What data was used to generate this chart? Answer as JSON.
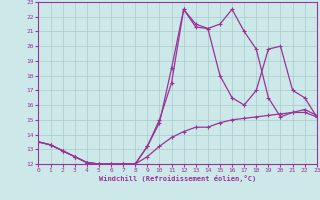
{
  "xlabel": "Windchill (Refroidissement éolien,°C)",
  "bg_color": "#cce8e8",
  "grid_color": "#aacccc",
  "line_color": "#993399",
  "xlim": [
    0,
    23
  ],
  "ylim": [
    12,
    23
  ],
  "x_ticks": [
    0,
    1,
    2,
    3,
    4,
    5,
    6,
    7,
    8,
    9,
    10,
    11,
    12,
    13,
    14,
    15,
    16,
    17,
    18,
    19,
    20,
    21,
    22,
    23
  ],
  "y_ticks": [
    12,
    13,
    14,
    15,
    16,
    17,
    18,
    19,
    20,
    21,
    22,
    23
  ],
  "line1_x": [
    0,
    1,
    2,
    3,
    4,
    5,
    6,
    7,
    8,
    9,
    10,
    11,
    12,
    13,
    14,
    15,
    16,
    17,
    18,
    19,
    20,
    21,
    22,
    23
  ],
  "line1_y": [
    13.5,
    13.3,
    12.9,
    12.5,
    12.1,
    12.0,
    12.0,
    12.0,
    12.0,
    12.5,
    13.2,
    13.8,
    14.2,
    14.5,
    14.5,
    14.8,
    15.0,
    15.1,
    15.2,
    15.3,
    15.4,
    15.5,
    15.7,
    15.3
  ],
  "line2_x": [
    0,
    1,
    2,
    3,
    4,
    5,
    6,
    7,
    8,
    9,
    10,
    11,
    12,
    13,
    14,
    15,
    16,
    17,
    18,
    19,
    20,
    21,
    22,
    23
  ],
  "line2_y": [
    13.5,
    13.3,
    12.9,
    12.5,
    12.1,
    12.0,
    12.0,
    12.0,
    12.0,
    13.2,
    15.0,
    17.5,
    22.5,
    21.3,
    21.2,
    18.0,
    16.5,
    16.0,
    17.0,
    19.8,
    20.0,
    17.0,
    16.5,
    15.2
  ],
  "line3_x": [
    0,
    1,
    2,
    3,
    4,
    5,
    6,
    7,
    8,
    9,
    10,
    11,
    12,
    13,
    14,
    15,
    16,
    17,
    18,
    19,
    20,
    21,
    22,
    23
  ],
  "line3_y": [
    13.5,
    13.3,
    12.9,
    12.5,
    12.1,
    12.0,
    12.0,
    12.0,
    12.0,
    13.2,
    14.8,
    18.5,
    22.5,
    21.5,
    21.2,
    21.5,
    22.5,
    21.0,
    19.8,
    16.5,
    15.2,
    15.5,
    15.5,
    15.2
  ]
}
